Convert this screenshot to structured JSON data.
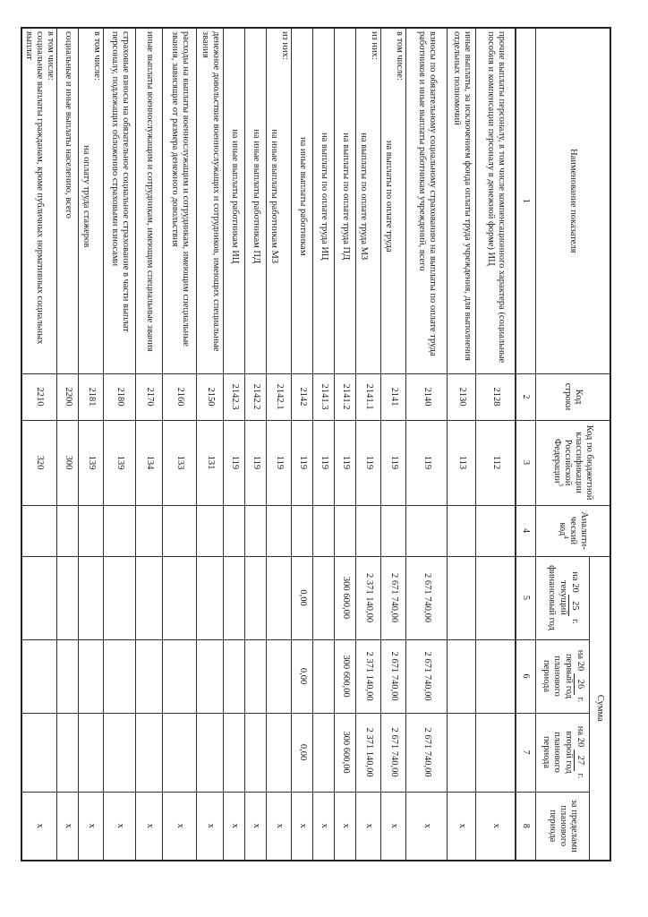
{
  "table": {
    "headers": {
      "name": "Наименование показателя",
      "line_code": "Код строки",
      "kbk": "Код по бюджетной классификации Российской Федерации",
      "kbk_footnote": "3",
      "analytic_line1": "Аналити-",
      "analytic_line2": "ческий",
      "analytic_line3": "код",
      "analytic_footnote": "4",
      "sum_group": "Сумма",
      "col5": {
        "prefix": "на 20",
        "year": "25",
        "suffix": "г.",
        "desc": "текущий финансовый год"
      },
      "col6": {
        "prefix": "на 20",
        "year": "26",
        "suffix": "г.",
        "desc": "первый год планового периода"
      },
      "col7": {
        "prefix": "на 20",
        "year": "27",
        "suffix": "г.",
        "desc": "второй год планового периода"
      },
      "col8": "за пределами планового периода",
      "col_numbers": [
        "1",
        "2",
        "3",
        "4",
        "5",
        "6",
        "7",
        "8"
      ]
    },
    "rows": [
      {
        "prefix": "",
        "name": "прочие выплаты персоналу, в том числе компенсационного характера (социальные пособия и компенсации персоналу в денежной форме) ИЦ",
        "center": false,
        "code": "2128",
        "kbk": "112",
        "analytic": "",
        "y2025": "",
        "y2026": "",
        "y2027": "",
        "beyond": "х"
      },
      {
        "prefix": "",
        "name": "иные выплаты, за исключением фонда оплаты труда учреждения, для выполнения отдельных полномочий",
        "center": false,
        "code": "2130",
        "kbk": "113",
        "analytic": "",
        "y2025": "",
        "y2026": "",
        "y2027": "",
        "beyond": "х"
      },
      {
        "prefix": "",
        "name": "взносы по обязательному социальному страхованию на выплаты по оплате труда работников и иные выплаты работникам учреждений, всего",
        "center": false,
        "code": "2140",
        "kbk": "119",
        "analytic": "",
        "y2025": "2 671 740,00",
        "y2026": "2 671 740,00",
        "y2027": "2 671 740,00",
        "beyond": "х"
      },
      {
        "prefix": "в том числе:",
        "name": "на выплаты по оплате труда",
        "center": true,
        "code": "2141",
        "kbk": "119",
        "analytic": "",
        "y2025": "2 671 740,00",
        "y2026": "2 671 740,00",
        "y2027": "2 671 740,00",
        "beyond": "х"
      },
      {
        "prefix": "из них:",
        "name": "на выплаты по оплате труда МЗ",
        "center": true,
        "code": "2141.1",
        "kbk": "119",
        "analytic": "",
        "y2025": "2 371 140,00",
        "y2026": "2 371 140,00",
        "y2027": "2 371 140,00",
        "beyond": "х"
      },
      {
        "prefix": "",
        "name": "на выплаты по оплате труда ПД",
        "center": true,
        "code": "2141.2",
        "kbk": "119",
        "analytic": "",
        "y2025": "300 600,00",
        "y2026": "300 600,00",
        "y2027": "300 600,00",
        "beyond": "х"
      },
      {
        "prefix": "",
        "name": "на выплаты по оплате труда ИЦ",
        "center": true,
        "code": "2141.3",
        "kbk": "119",
        "analytic": "",
        "y2025": "",
        "y2026": "",
        "y2027": "",
        "beyond": "х"
      },
      {
        "prefix": "",
        "name": "на иные выплаты работникам",
        "center": true,
        "code": "2142",
        "kbk": "119",
        "analytic": "",
        "y2025": "0,00",
        "y2026": "0,00",
        "y2027": "0,00",
        "beyond": "х"
      },
      {
        "prefix": "из них:",
        "name": "на иные выплаты работникам МЗ",
        "center": true,
        "code": "2142.1",
        "kbk": "119",
        "analytic": "",
        "y2025": "",
        "y2026": "",
        "y2027": "",
        "beyond": "х"
      },
      {
        "prefix": "",
        "name": "на иные выплаты работникам ПД",
        "center": true,
        "code": "2142.2",
        "kbk": "119",
        "analytic": "",
        "y2025": "",
        "y2026": "",
        "y2027": "",
        "beyond": "х"
      },
      {
        "prefix": "",
        "name": "на иные выплаты работникам ИЦ",
        "center": true,
        "code": "2142.3",
        "kbk": "119",
        "analytic": "",
        "y2025": "",
        "y2026": "",
        "y2027": "",
        "beyond": "х"
      },
      {
        "prefix": "",
        "name": "денежное довольствие военнослужащих и сотрудников, имеющих специальные звания",
        "center": false,
        "code": "2150",
        "kbk": "131",
        "analytic": "",
        "y2025": "",
        "y2026": "",
        "y2027": "",
        "beyond": "х"
      },
      {
        "prefix": "",
        "name": "расходы на выплаты военнослужащим и сотрудникам, имеющим специальные звания, зависящие от размера денежного довольствия",
        "center": false,
        "code": "2160",
        "kbk": "133",
        "analytic": "",
        "y2025": "",
        "y2026": "",
        "y2027": "",
        "beyond": "х"
      },
      {
        "prefix": "",
        "name": "иные выплаты военнослужащим и сотрудникам, имеющим специальные звания",
        "center": false,
        "code": "2170",
        "kbk": "134",
        "analytic": "",
        "y2025": "",
        "y2026": "",
        "y2027": "",
        "beyond": "х"
      },
      {
        "prefix": "",
        "name": "страховые взносы на обязательное социальное страхование в части выплат персоналу, подлежащих обложению страховыми взносами",
        "center": false,
        "code": "2180",
        "kbk": "139",
        "analytic": "",
        "y2025": "",
        "y2026": "",
        "y2027": "",
        "beyond": "х"
      },
      {
        "prefix": "в том числе:",
        "name": "на оплату труда стажеров",
        "center": true,
        "code": "2181",
        "kbk": "139",
        "analytic": "",
        "y2025": "",
        "y2026": "",
        "y2027": "",
        "beyond": "х"
      },
      {
        "prefix": "",
        "name": "социальные и иные выплаты населению, всего",
        "center": false,
        "code": "2200",
        "kbk": "300",
        "analytic": "",
        "y2025": "",
        "y2026": "",
        "y2027": "",
        "beyond": "х"
      },
      {
        "prefix": "в том числе:",
        "name": "социальные выплаты гражданам, кроме публичных нормативных социальных выплат",
        "center": false,
        "code": "2210",
        "kbk": "320",
        "analytic": "",
        "y2025": "",
        "y2026": "",
        "y2027": "",
        "beyond": "х"
      }
    ]
  }
}
